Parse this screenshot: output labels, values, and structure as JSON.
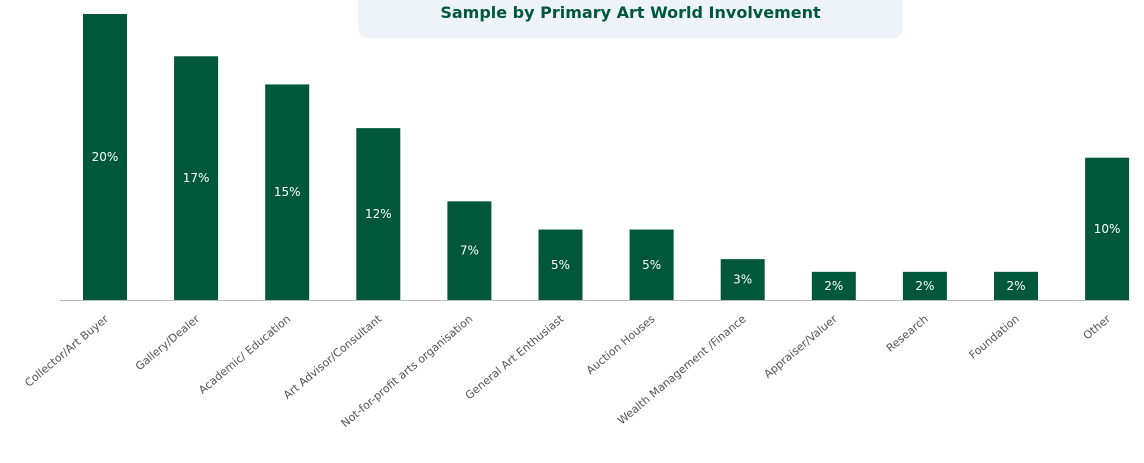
{
  "chart_data": {
    "type": "bar",
    "title": "Sample by Primary Art World Involvement",
    "categories": [
      "Collector/Art Buyer",
      "Gallery/Dealer",
      "Academic/ Education",
      "Art Advisor/Consultant",
      "Not-for-profit arts organisation",
      "General Art Enthusiast",
      "Auction Houses",
      "Wealth Management /Finance",
      "Appraiser/Valuer",
      "Research",
      "Foundation",
      "Other"
    ],
    "values": [
      20,
      17,
      15,
      12,
      7,
      5,
      5,
      3,
      2,
      2,
      2,
      10
    ],
    "value_labels": [
      "20%",
      "17%",
      "15%",
      "12%",
      "7%",
      "5%",
      "5%",
      "3%",
      "2%",
      "2%",
      "2%",
      "10%"
    ],
    "bar_heights_relative": [
      20.3,
      17.3,
      15.3,
      12.2,
      7.0,
      5.0,
      5.0,
      2.9,
      2.0,
      2.0,
      2.0,
      10.1
    ],
    "xlabel": "",
    "ylabel": "",
    "ylim": [
      0,
      20.3
    ],
    "grid": false,
    "legend": "none",
    "colors": {
      "bar": "#00573a",
      "label": "#ffffff",
      "axis": "#bbbbbb",
      "category": "#555555",
      "title": "#00573a",
      "title_bg": "#eef3fa"
    }
  }
}
